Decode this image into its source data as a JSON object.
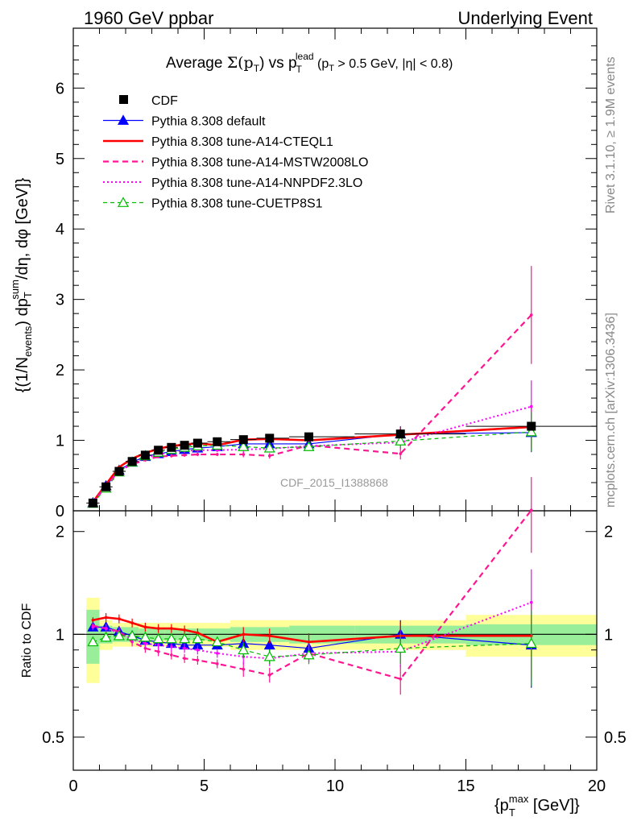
{
  "header": {
    "left": "1960 GeV ppbar",
    "right": "Underlying Event"
  },
  "side": {
    "rivet": "Rivet 3.1.10, ≥ 1.9M events",
    "mcplots": "mcplots.cern.ch [arXiv:1306.3436]"
  },
  "watermark": "CDF_2015_I1388868",
  "title": {
    "prefix": "Average ",
    "sigma": "Σ(p",
    "sigma_sub": "T",
    "sigma_close": ")",
    "vs": " vs p",
    "lead_sup": "lead",
    "lead_sub": "T",
    "cut": " (p",
    "cut_sub": "T",
    "cut_rest": " > 0.5 GeV, |η| < 0.8)"
  },
  "axes": {
    "y_main_label": "{(1/N_events) dp_T^sum/dη, dφ [GeV]}",
    "y_main_parts": [
      "{(1/N",
      "events",
      ") dp",
      "sum",
      "T",
      "/dη, dφ [GeV]}"
    ],
    "y_ratio_label": "Ratio to CDF",
    "x_label_parts": [
      "{p",
      "max",
      "T",
      " [GeV]}"
    ],
    "x_ticks": [
      "0",
      "5",
      "10",
      "15",
      "20"
    ],
    "y_main_ticks": [
      "0",
      "1",
      "2",
      "3",
      "4",
      "5",
      "6"
    ],
    "y_ratio_ticks": [
      "0.5",
      "1",
      "2"
    ]
  },
  "legend": [
    {
      "label": "CDF",
      "color": "#000000",
      "style": "data"
    },
    {
      "label": "Pythia 8.308 default",
      "color": "#0000ff",
      "style": "solid-triangle"
    },
    {
      "label": "Pythia 8.308 tune-A14-CTEQL1",
      "color": "#ff0000",
      "style": "solid-thick"
    },
    {
      "label": "Pythia 8.308 tune-A14-MSTW2008LO",
      "color": "#ff1493",
      "style": "dashed"
    },
    {
      "label": "Pythia 8.308 tune-A14-NNPDF2.3LO",
      "color": "#ff00ff",
      "style": "dotted"
    },
    {
      "label": "Pythia 8.308 tune-CUETP8S1",
      "color": "#00bb00",
      "style": "dashed-open-triangle"
    }
  ],
  "chart_data": {
    "type": "line",
    "x": [
      0.75,
      1.25,
      1.75,
      2.25,
      2.75,
      3.25,
      3.75,
      4.25,
      4.75,
      5.5,
      6.5,
      7.5,
      9.0,
      12.5,
      17.5
    ],
    "xlim": [
      0,
      20
    ],
    "ylim": [
      0,
      6.85
    ],
    "ratio_ylim_log": [
      0.4,
      2.3
    ],
    "series": [
      {
        "name": "CDF",
        "values": [
          0.11,
          0.34,
          0.56,
          0.7,
          0.79,
          0.86,
          0.9,
          0.93,
          0.96,
          0.98,
          1.01,
          1.03,
          1.05,
          1.09,
          1.2
        ]
      },
      {
        "name": "Pythia 8.308 default",
        "values": [
          0.115,
          0.355,
          0.575,
          0.69,
          0.77,
          0.81,
          0.84,
          0.87,
          0.89,
          0.91,
          0.95,
          0.95,
          0.95,
          1.09,
          1.11
        ]
      },
      {
        "name": "Pythia 8.308 tune-A14-CTEQL1",
        "values": [
          0.125,
          0.375,
          0.62,
          0.74,
          0.82,
          0.88,
          0.92,
          0.94,
          0.96,
          0.93,
          1.01,
          1.02,
          1.0,
          1.08,
          1.19
        ]
      },
      {
        "name": "Pythia 8.308 tune-A14-MSTW2008LO",
        "values": [
          0.115,
          0.35,
          0.57,
          0.66,
          0.72,
          0.77,
          0.78,
          0.79,
          0.8,
          0.8,
          0.8,
          0.78,
          0.93,
          0.81,
          2.78
        ]
      },
      {
        "name": "Pythia 8.308 tune-A14-NNPDF2.3LO",
        "values": [
          0.115,
          0.35,
          0.57,
          0.68,
          0.75,
          0.8,
          0.83,
          0.85,
          0.86,
          0.86,
          0.87,
          0.88,
          0.92,
          0.97,
          1.48
        ]
      },
      {
        "name": "Pythia 8.308 tune-CUETP8S1",
        "values": [
          0.105,
          0.32,
          0.55,
          0.69,
          0.78,
          0.83,
          0.87,
          0.9,
          0.92,
          0.93,
          0.91,
          0.89,
          0.91,
          0.99,
          1.12
        ]
      }
    ],
    "ratio": {
      "Pythia 8.308 default": [
        1.05,
        1.05,
        1.02,
        0.99,
        0.96,
        0.95,
        0.94,
        0.93,
        0.93,
        0.93,
        0.94,
        0.93,
        0.91,
        1.0,
        0.93
      ],
      "Pythia 8.308 tune-A14-CTEQL1": [
        1.1,
        1.12,
        1.11,
        1.08,
        1.05,
        1.04,
        1.04,
        1.03,
        1.01,
        0.95,
        1.0,
        0.99,
        0.95,
        0.99,
        0.99
      ],
      "Pythia 8.308 tune-A14-MSTW2008LO": [
        1.06,
        1.04,
        1.02,
        0.95,
        0.91,
        0.89,
        0.87,
        0.85,
        0.84,
        0.82,
        0.79,
        0.76,
        0.88,
        0.74,
        2.31
      ],
      "Pythia 8.308 tune-A14-NNPDF2.3LO": [
        1.05,
        1.04,
        1.01,
        0.97,
        0.94,
        0.93,
        0.92,
        0.91,
        0.9,
        0.88,
        0.86,
        0.85,
        0.88,
        0.89,
        1.24
      ],
      "Pythia 8.308 tune-CUETP8S1": [
        0.95,
        0.98,
        0.99,
        0.99,
        0.98,
        0.97,
        0.97,
        0.97,
        0.97,
        0.95,
        0.9,
        0.86,
        0.87,
        0.91,
        0.94
      ]
    },
    "error_band_inner": [
      0.18,
      0.06,
      0.05,
      0.05,
      0.04,
      0.04,
      0.04,
      0.04,
      0.04,
      0.04,
      0.05,
      0.05,
      0.06,
      0.06,
      0.07
    ],
    "error_band_outer": [
      0.28,
      0.1,
      0.08,
      0.08,
      0.08,
      0.08,
      0.08,
      0.08,
      0.08,
      0.08,
      0.1,
      0.1,
      0.1,
      0.1,
      0.14
    ]
  }
}
